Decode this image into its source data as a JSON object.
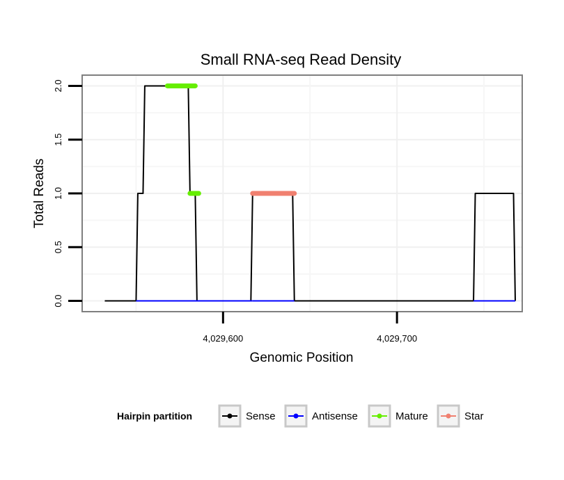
{
  "chart_data": {
    "type": "line",
    "title": "Small RNA-seq Read Density",
    "xlabel": "Genomic Position",
    "ylabel": "Total Reads",
    "xlim": [
      4029519,
      4029772
    ],
    "ylim": [
      -0.1,
      2.1
    ],
    "x_ticks": [
      {
        "value": 4029600,
        "label": "4,029,600"
      },
      {
        "value": 4029700,
        "label": "4,029,700"
      }
    ],
    "y_ticks": [
      {
        "value": 0.0,
        "label": "0.0"
      },
      {
        "value": 0.5,
        "label": "0.5"
      },
      {
        "value": 1.0,
        "label": "1.0"
      },
      {
        "value": 1.5,
        "label": "1.5"
      },
      {
        "value": 2.0,
        "label": "2.0"
      }
    ],
    "grid": true,
    "legend_title": "Hairpin partition",
    "legend_position": "bottom",
    "series": [
      {
        "name": "Sense",
        "color": "#000000",
        "points": [
          [
            4029532,
            0
          ],
          [
            4029550,
            0
          ],
          [
            4029551,
            1
          ],
          [
            4029554,
            1
          ],
          [
            4029555,
            2
          ],
          [
            4029580,
            2
          ],
          [
            4029581,
            1
          ],
          [
            4029584,
            1
          ],
          [
            4029585,
            0
          ],
          [
            4029616,
            0
          ],
          [
            4029617,
            1
          ],
          [
            4029640,
            1
          ],
          [
            4029641,
            0
          ],
          [
            4029744,
            0
          ],
          [
            4029745,
            1
          ],
          [
            4029767,
            1
          ],
          [
            4029768,
            0
          ]
        ]
      },
      {
        "name": "Antisense",
        "color": "#0000FF",
        "segments": [
          [
            [
              4029550,
              0
            ],
            [
              4029617,
              0
            ]
          ],
          [
            [
              4029617,
              0
            ],
            [
              4029641,
              0
            ]
          ],
          [
            [
              4029744,
              0
            ],
            [
              4029768,
              0
            ]
          ]
        ]
      },
      {
        "name": "Mature",
        "color": "#66EE00",
        "segments": [
          [
            [
              4029568,
              2
            ],
            [
              4029584,
              2
            ]
          ],
          [
            [
              4029581,
              1
            ],
            [
              4029586,
              1
            ]
          ]
        ]
      },
      {
        "name": "Star",
        "color": "#F08070",
        "segments": [
          [
            [
              4029617,
              1
            ],
            [
              4029641,
              1
            ]
          ]
        ]
      }
    ]
  }
}
